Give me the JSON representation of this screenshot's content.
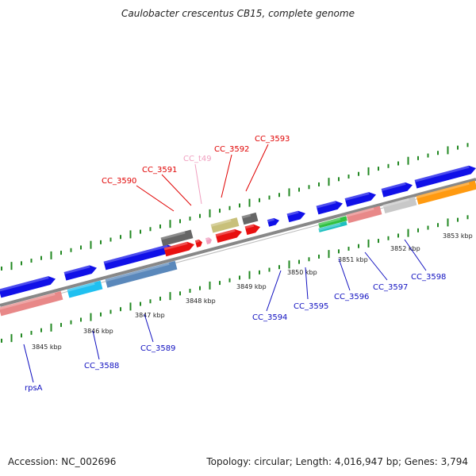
{
  "title": "Caulobacter crescentus CB15, complete genome",
  "footer": {
    "accession": "Accession: NC_002696",
    "summary": "Topology: circular; Length: 4,016,947 bp; Genes: 3,794"
  },
  "colors": {
    "upper_label": "#e00000",
    "upper_label_pink": "#f0a0c0",
    "lower_label": "#1010c0",
    "backbone": "#888888",
    "ticks": "#228822",
    "blue": "#1010e8",
    "red": "#e81010",
    "gray": "#666666",
    "khaki": "#c8c07a",
    "salmon": "#e88888",
    "cyan": "#20c0f0",
    "steel": "#5a88bb",
    "green": "#30c040",
    "teal": "#20c0c0",
    "silver": "#c8c8c8",
    "orange": "#ff9a10"
  },
  "scale_labels": [
    "3845 kbp",
    "3846 kbp",
    "3847 kbp",
    "3848 kbp",
    "3849 kbp",
    "3850 kbp",
    "3851 kbp",
    "3852 kbp",
    "3853 kbp"
  ],
  "gene_labels": [
    {
      "text": "CC_3590",
      "color_key": "upper_label"
    },
    {
      "text": "CC_3591",
      "color_key": "upper_label"
    },
    {
      "text": "CC_t49",
      "color_key": "upper_label_pink"
    },
    {
      "text": "CC_3592",
      "color_key": "upper_label"
    },
    {
      "text": "CC_3593",
      "color_key": "upper_label"
    },
    {
      "text": "rpsA",
      "color_key": "lower_label"
    },
    {
      "text": "CC_3588",
      "color_key": "lower_label"
    },
    {
      "text": "CC_3589",
      "color_key": "lower_label"
    },
    {
      "text": "CC_3594",
      "color_key": "lower_label"
    },
    {
      "text": "CC_3595",
      "color_key": "lower_label"
    },
    {
      "text": "CC_3596",
      "color_key": "lower_label"
    },
    {
      "text": "CC_3597",
      "color_key": "lower_label"
    },
    {
      "text": "CC_3598",
      "color_key": "lower_label"
    }
  ]
}
